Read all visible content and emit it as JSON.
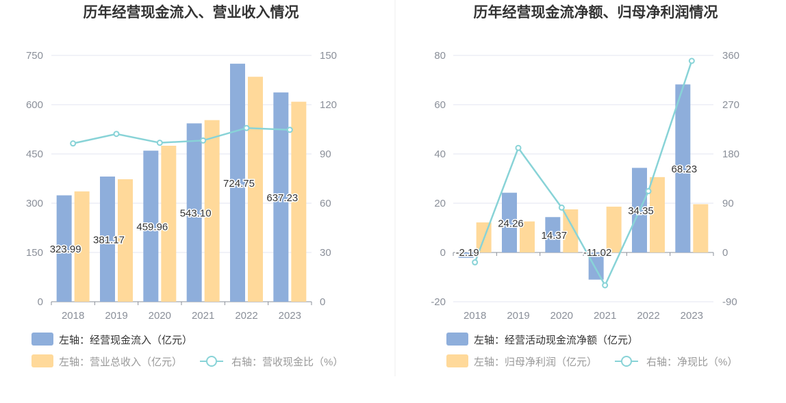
{
  "colors": {
    "bar_blue": "#8eaedb",
    "bar_yellow": "#ffd99a",
    "line": "#88d3d7",
    "grid": "#e3e6f0",
    "axis": "#8a8f99",
    "legend_dark": "#333333",
    "legend_light": "#999999"
  },
  "chart_data": [
    {
      "type": "bar",
      "title": "历年经营现金流入、营业收入情况",
      "categories": [
        "2018",
        "2019",
        "2020",
        "2021",
        "2022",
        "2023"
      ],
      "left_axis": {
        "ylim": [
          0,
          750
        ],
        "ticks": [
          "0",
          "150",
          "300",
          "450",
          "600",
          "750"
        ]
      },
      "right_axis": {
        "ylim": [
          0,
          150
        ],
        "ticks": [
          "0",
          "30",
          "60",
          "90",
          "120",
          "150"
        ]
      },
      "series": [
        {
          "name": "左轴：经营现金流入（亿元）",
          "kind": "bar",
          "axis": "left",
          "color": "#8eaedb",
          "values": [
            323.99,
            381.17,
            459.96,
            543.1,
            724.75,
            637.23
          ],
          "labels": [
            "323.99",
            "381.17",
            "459.96",
            "543.10",
            "724.75",
            "637.23"
          ]
        },
        {
          "name": "左轴：营业总收入（亿元）",
          "kind": "bar",
          "axis": "left",
          "color": "#ffd99a",
          "values": [
            336,
            373,
            475,
            553,
            685,
            609
          ]
        },
        {
          "name": "右轴：营收现金比（%）",
          "kind": "line",
          "axis": "right",
          "color": "#88d3d7",
          "values": [
            96.4,
            102.2,
            96.8,
            98.2,
            105.8,
            104.7
          ]
        }
      ],
      "grid": true,
      "legend_position": "bottom-left"
    },
    {
      "type": "bar",
      "title": "历年经营现金流净额、归母净利润情况",
      "categories": [
        "2018",
        "2019",
        "2020",
        "2021",
        "2022",
        "2023"
      ],
      "left_axis": {
        "ylim": [
          -20,
          80
        ],
        "ticks": [
          "-20",
          "0",
          "20",
          "40",
          "60",
          "80"
        ]
      },
      "right_axis": {
        "ylim": [
          -90,
          360
        ],
        "ticks": [
          "-90",
          "0",
          "90",
          "180",
          "270",
          "360"
        ]
      },
      "series": [
        {
          "name": "左轴：经营活动现金流净额（亿元）",
          "kind": "bar",
          "axis": "left",
          "color": "#8eaedb",
          "values": [
            -2.19,
            24.26,
            14.37,
            -11.02,
            34.35,
            68.23
          ],
          "labels": [
            "-2.19",
            "24.26",
            "14.37",
            "-11.02",
            "34.35",
            "68.23"
          ]
        },
        {
          "name": "左轴：归母净利润（亿元）",
          "kind": "bar",
          "axis": "left",
          "color": "#ffd99a",
          "values": [
            12.2,
            12.6,
            17.5,
            18.6,
            30.6,
            19.6
          ]
        },
        {
          "name": "右轴：净现比（%）",
          "kind": "line",
          "axis": "right",
          "color": "#88d3d7",
          "values": [
            -18,
            191,
            82,
            -60,
            112,
            350
          ]
        }
      ],
      "grid": true,
      "legend_position": "bottom-left"
    }
  ]
}
